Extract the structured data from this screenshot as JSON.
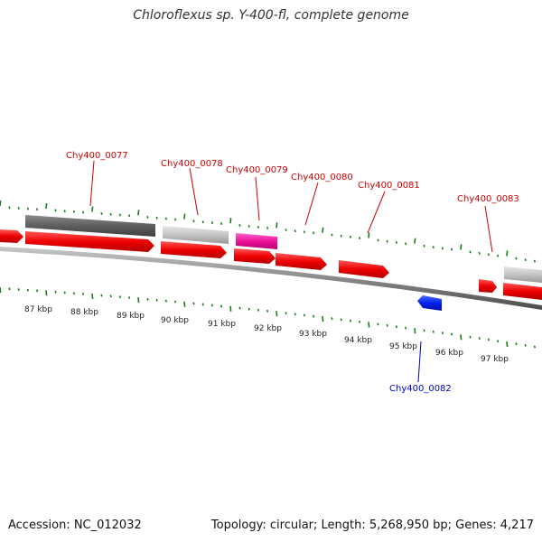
{
  "title": "Chloroflexus sp. Y-400-fl, complete genome",
  "footer": {
    "accession": "Accession: NC_012032",
    "info": "Topology: circular; Length: 5,268,950 bp; Genes: 4,217"
  },
  "colors": {
    "forward_label": "#cc0000",
    "reverse_label": "#0000cc",
    "tick": "#1a7a1a",
    "backbone": "#808080"
  },
  "tick_labels": [
    "87 kbp",
    "88 kbp",
    "89 kbp",
    "90 kbp",
    "91 kbp",
    "92 kbp",
    "93 kbp",
    "94 kbp",
    "95 kbp",
    "96 kbp",
    "97 kbp"
  ],
  "gene_labels": [
    {
      "text": "Chy400_0077",
      "strand": "forward"
    },
    {
      "text": "Chy400_0078",
      "strand": "forward"
    },
    {
      "text": "Chy400_0079",
      "strand": "forward"
    },
    {
      "text": "Chy400_0080",
      "strand": "forward"
    },
    {
      "text": "Chy400_0081",
      "strand": "forward"
    },
    {
      "text": "Chy400_0083",
      "strand": "forward"
    },
    {
      "text": "Chy400_0082",
      "strand": "reverse"
    }
  ]
}
